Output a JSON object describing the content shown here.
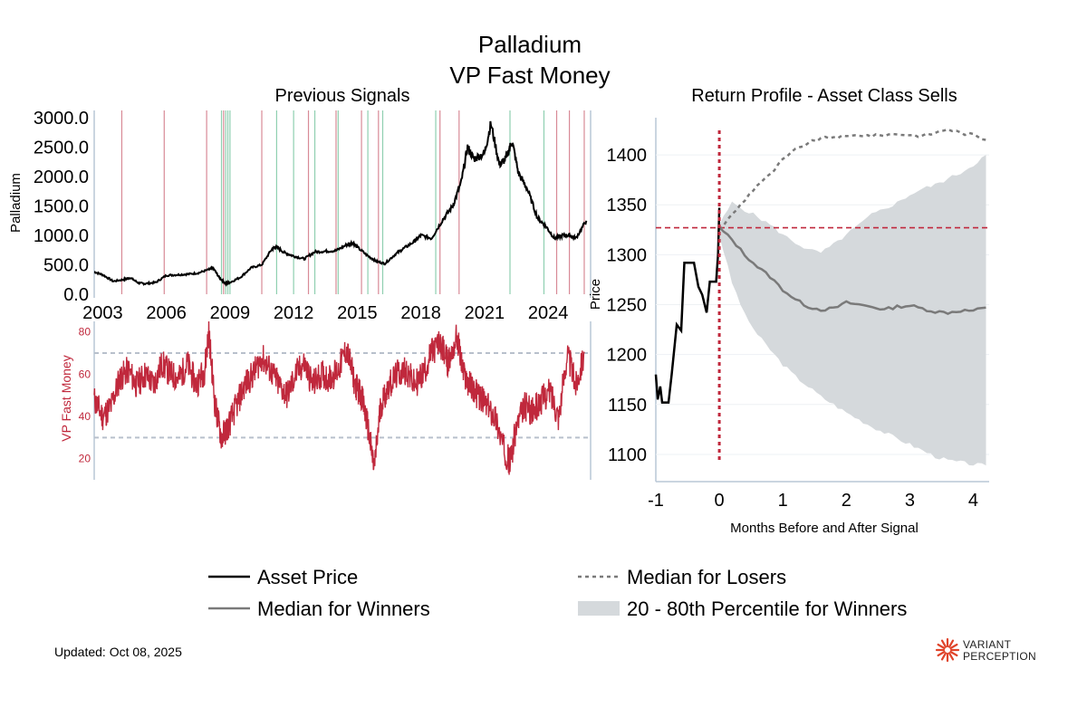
{
  "title_line1": "Palladium",
  "title_line2": "VP Fast Money",
  "footer": {
    "updated": "Updated: Oct 08, 2025"
  },
  "logo": {
    "line1": "VARIANT",
    "line2": "PERCEPTION"
  },
  "colors": {
    "price": "#000000",
    "indicator": "#c0283c",
    "signal_red": "#d88a96",
    "signal_green": "#8fcfb0",
    "band": "#d5d9dc",
    "median": "#7a7a7a",
    "threshold": "#b8c0cc",
    "accent": "#e0442a"
  },
  "legend": {
    "asset_price": "Asset Price",
    "median_winners": "Median for Winners",
    "median_losers": "Median for Losers",
    "band": "20 - 80th Percentile for Winners"
  },
  "chart_data": [
    {
      "id": "previous-signals",
      "type": "line",
      "title": "Previous Signals",
      "ylabel": "Palladium",
      "ylim": [
        0,
        3000
      ],
      "yticks": [
        "0.0",
        "500.0",
        "1000.0",
        "1500.0",
        "2000.0",
        "2500.0",
        "3000.0"
      ],
      "xlim": [
        2002.6,
        2026.0
      ],
      "xticks": [
        "2003",
        "2006",
        "2009",
        "2012",
        "2015",
        "2018",
        "2021",
        "2024"
      ],
      "series": [
        {
          "name": "Palladium",
          "x": [
            2002.6,
            2003.0,
            2003.5,
            2004.0,
            2004.3,
            2004.7,
            2005.0,
            2005.5,
            2006.0,
            2006.5,
            2007.0,
            2007.5,
            2008.0,
            2008.2,
            2008.5,
            2008.8,
            2009.0,
            2009.5,
            2010.0,
            2010.5,
            2011.0,
            2011.2,
            2011.6,
            2012.0,
            2012.5,
            2013.0,
            2013.5,
            2014.0,
            2014.5,
            2014.8,
            2015.0,
            2015.5,
            2015.9,
            2016.3,
            2016.8,
            2017.2,
            2017.7,
            2018.0,
            2018.5,
            2019.0,
            2019.5,
            2019.9,
            2020.2,
            2020.5,
            2021.0,
            2021.3,
            2021.7,
            2022.0,
            2022.3,
            2022.6,
            2023.0,
            2023.5,
            2023.9,
            2024.3,
            2024.7,
            2025.0,
            2025.3,
            2025.8
          ],
          "values": [
            380,
            330,
            220,
            250,
            280,
            190,
            180,
            200,
            320,
            330,
            340,
            360,
            420,
            450,
            280,
            180,
            200,
            290,
            450,
            500,
            780,
            800,
            700,
            650,
            600,
            720,
            730,
            740,
            840,
            880,
            800,
            650,
            560,
            520,
            680,
            780,
            900,
            1000,
            950,
            1250,
            1500,
            1900,
            2500,
            2300,
            2400,
            2900,
            2200,
            2300,
            2600,
            2050,
            1800,
            1300,
            1150,
            950,
            1000,
            1000,
            950,
            1250
          ]
        }
      ],
      "signals_red": [
        2003.9,
        2005.9,
        2007.9,
        2008.7,
        2010.5,
        2012.7,
        2014.0,
        2015.2,
        2016.0,
        2018.9,
        2019.8,
        2024.4,
        2025.0,
        2025.7
      ],
      "signals_green": [
        2008.6,
        2008.8,
        2008.9,
        2009.0,
        2011.2,
        2012.0,
        2013.0,
        2014.1,
        2015.5,
        2016.2,
        2018.7,
        2022.2,
        2023.8
      ]
    },
    {
      "id": "vp-fast-money",
      "type": "line",
      "ylabel": "VP Fast Money",
      "ylim": [
        10,
        85
      ],
      "yticks": [
        "20",
        "40",
        "60",
        "80"
      ],
      "thresholds": [
        30,
        70
      ],
      "xlim": [
        2002.6,
        2026.0
      ],
      "series": [
        {
          "name": "VP Fast Money",
          "x": [
            2002.6,
            2003.0,
            2003.4,
            2003.8,
            2004.2,
            2004.6,
            2005.0,
            2005.4,
            2005.8,
            2006.2,
            2006.6,
            2007.0,
            2007.4,
            2007.8,
            2008.0,
            2008.3,
            2008.6,
            2008.9,
            2009.3,
            2009.7,
            2010.1,
            2010.5,
            2010.9,
            2011.3,
            2011.7,
            2012.1,
            2012.5,
            2012.9,
            2013.3,
            2013.7,
            2014.1,
            2014.5,
            2014.9,
            2015.2,
            2015.5,
            2015.8,
            2016.1,
            2016.5,
            2016.9,
            2017.3,
            2017.7,
            2018.1,
            2018.5,
            2018.9,
            2019.3,
            2019.7,
            2020.0,
            2020.3,
            2020.7,
            2021.1,
            2021.5,
            2021.9,
            2022.2,
            2022.5,
            2022.9,
            2023.3,
            2023.7,
            2024.1,
            2024.5,
            2024.9,
            2025.3,
            2025.7
          ],
          "values": [
            48,
            40,
            45,
            58,
            62,
            55,
            60,
            55,
            65,
            60,
            58,
            65,
            55,
            62,
            80,
            45,
            30,
            35,
            45,
            55,
            60,
            68,
            62,
            55,
            50,
            60,
            65,
            55,
            60,
            58,
            62,
            72,
            55,
            50,
            35,
            15,
            45,
            55,
            60,
            62,
            55,
            60,
            70,
            75,
            65,
            78,
            60,
            55,
            50,
            45,
            40,
            25,
            18,
            35,
            45,
            42,
            48,
            52,
            40,
            70,
            55,
            70
          ]
        }
      ]
    },
    {
      "id": "return-profile",
      "type": "line",
      "title": "Return Profile - Asset Class Sells",
      "xlabel": "Months Before and After Signal",
      "ylabel": "Price",
      "xlim": [
        -1.0,
        4.25
      ],
      "ylim": [
        1080,
        1430
      ],
      "xticks": [
        "-1",
        "0",
        "1",
        "2",
        "3",
        "4"
      ],
      "yticks": [
        "1100",
        "1150",
        "1200",
        "1250",
        "1300",
        "1350",
        "1400"
      ],
      "signal_x": 0,
      "reference_price": 1327,
      "asset_price": {
        "x": [
          -1.0,
          -0.97,
          -0.93,
          -0.9,
          -0.87,
          -0.83,
          -0.8,
          -0.75,
          -0.67,
          -0.6,
          -0.55,
          -0.48,
          -0.4,
          -0.33,
          -0.27,
          -0.2,
          -0.15,
          -0.1,
          -0.05,
          -0.02,
          0.0
        ],
        "values": [
          1180,
          1155,
          1168,
          1152,
          1152,
          1152,
          1152,
          1180,
          1230,
          1224,
          1292,
          1292,
          1292,
          1268,
          1260,
          1242,
          1273,
          1273,
          1273,
          1300,
          1347
        ]
      },
      "median_winners": {
        "x": [
          0.0,
          0.2,
          0.4,
          0.6,
          0.8,
          1.0,
          1.2,
          1.4,
          1.6,
          1.8,
          2.0,
          2.2,
          2.4,
          2.6,
          2.8,
          3.0,
          3.2,
          3.4,
          3.6,
          3.8,
          4.0,
          4.2
        ],
        "values": [
          1327,
          1315,
          1300,
          1288,
          1278,
          1265,
          1255,
          1248,
          1245,
          1246,
          1252,
          1250,
          1248,
          1245,
          1248,
          1249,
          1246,
          1243,
          1242,
          1244,
          1244,
          1247
        ]
      },
      "median_losers": {
        "x": [
          0.0,
          0.2,
          0.4,
          0.6,
          0.8,
          1.0,
          1.2,
          1.4,
          1.6,
          1.8,
          2.0,
          2.2,
          2.4,
          2.6,
          2.8,
          3.0,
          3.2,
          3.4,
          3.6,
          3.8,
          4.0,
          4.2
        ],
        "values": [
          1325,
          1340,
          1355,
          1370,
          1380,
          1395,
          1405,
          1412,
          1416,
          1418,
          1418,
          1420,
          1419,
          1420,
          1421,
          1420,
          1419,
          1422,
          1426,
          1422,
          1420,
          1415
        ]
      },
      "band_winners": {
        "x": [
          0.0,
          0.2,
          0.4,
          0.6,
          0.8,
          1.0,
          1.2,
          1.4,
          1.6,
          1.8,
          2.0,
          2.2,
          2.4,
          2.6,
          2.8,
          3.0,
          3.2,
          3.4,
          3.6,
          3.8,
          4.0,
          4.2
        ],
        "low": [
          1320,
          1272,
          1240,
          1220,
          1205,
          1190,
          1178,
          1168,
          1158,
          1150,
          1142,
          1135,
          1128,
          1122,
          1116,
          1110,
          1104,
          1098,
          1094,
          1092,
          1090,
          1089
        ],
        "high": [
          1330,
          1352,
          1345,
          1338,
          1330,
          1320,
          1312,
          1305,
          1302,
          1310,
          1320,
          1330,
          1340,
          1346,
          1352,
          1360,
          1366,
          1370,
          1376,
          1382,
          1390,
          1400
        ]
      }
    }
  ]
}
